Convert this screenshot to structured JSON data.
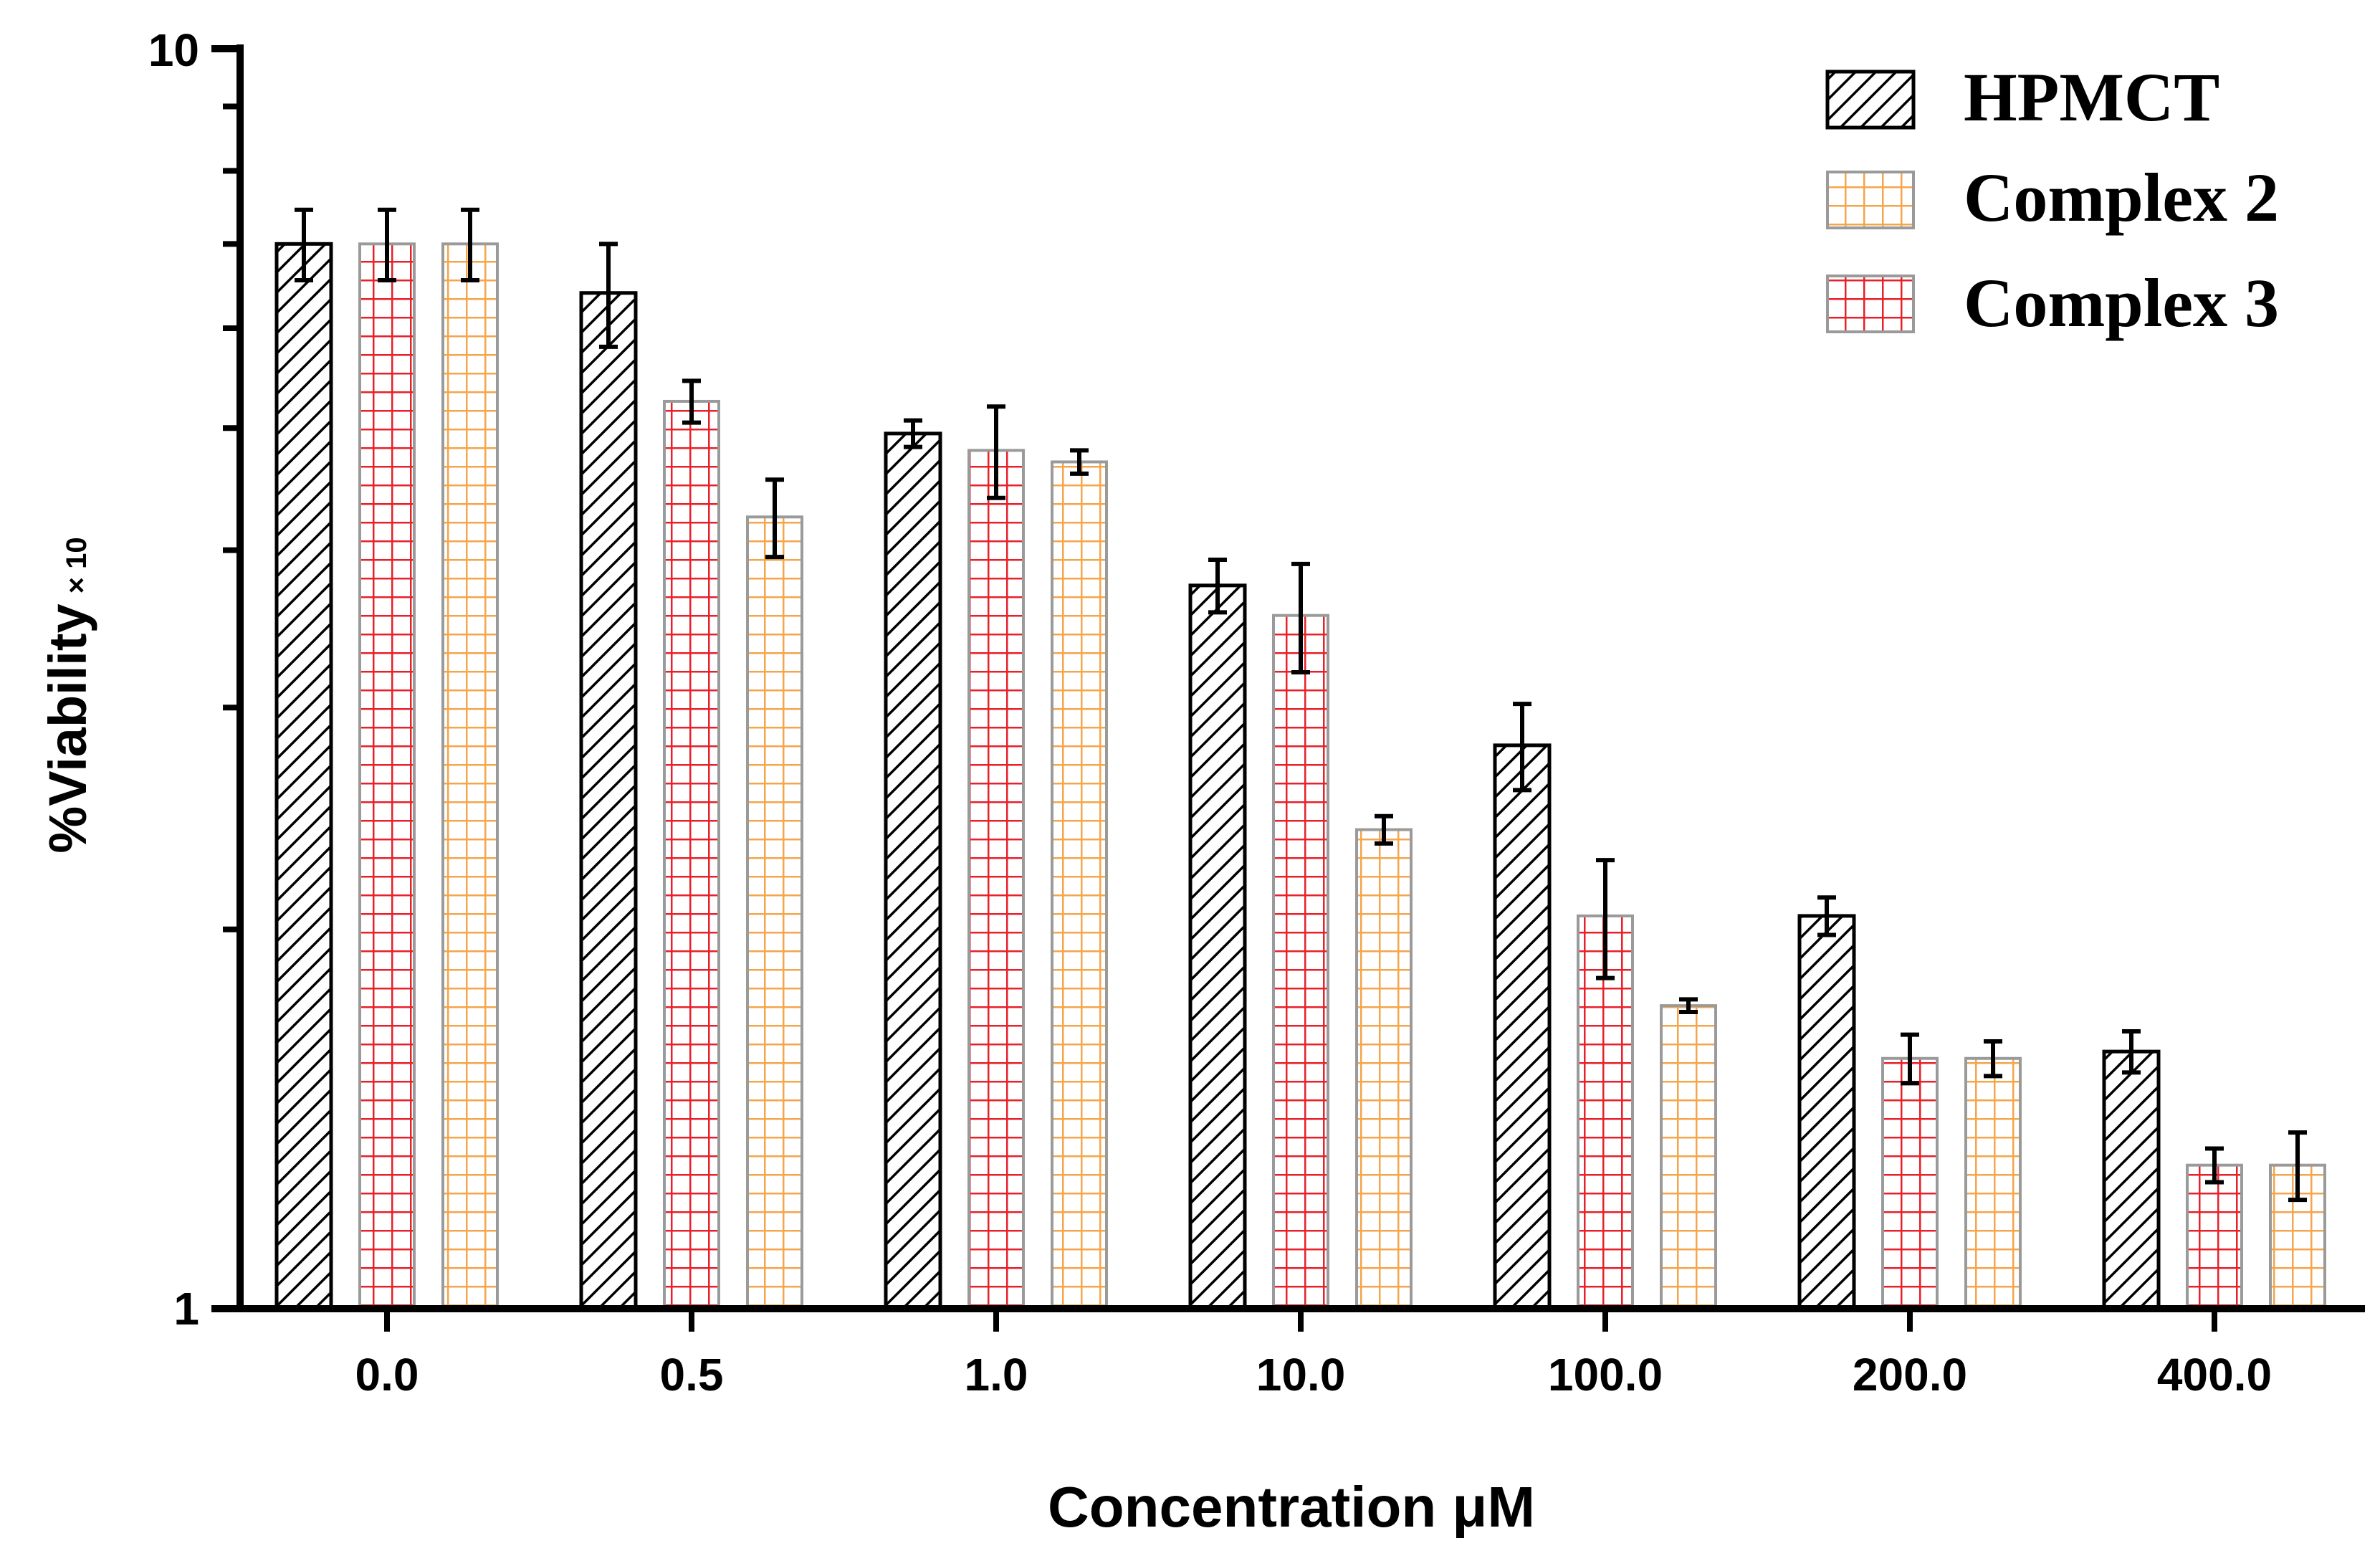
{
  "chart_data": {
    "type": "bar",
    "scale": "log",
    "xlabel": "Concentration μM",
    "ylabel": "%Viability",
    "ylabel_suffix": "× 10",
    "ylim": [
      1,
      10
    ],
    "y_ticks": [
      "1",
      "10"
    ],
    "categories": [
      "0.0",
      "0.5",
      "1.0",
      "10.0",
      "100.0",
      "200.0",
      "400.0"
    ],
    "legend_position": "top-right",
    "legend": [
      {
        "label": "HPMCT",
        "pattern": "diagonal",
        "color": "#000000"
      },
      {
        "label": "Complex 2",
        "pattern": "grid",
        "color": "#f5a54a"
      },
      {
        "label": "Complex 3",
        "pattern": "grid",
        "color": "#e8202a"
      }
    ],
    "series": [
      {
        "pattern": "diagonal",
        "color": "#000000",
        "values": [
          7.0,
          6.4,
          4.95,
          3.75,
          2.8,
          2.05,
          1.6
        ],
        "errors": [
          0.45,
          0.6,
          0.12,
          0.18,
          0.22,
          0.07,
          0.06
        ]
      },
      {
        "pattern": "grid",
        "color": "#e8202a",
        "values": [
          7.0,
          5.25,
          4.8,
          3.55,
          2.05,
          1.58,
          1.3
        ],
        "errors": [
          0.45,
          0.2,
          0.4,
          0.35,
          0.22,
          0.07,
          0.04
        ]
      },
      {
        "pattern": "grid",
        "color": "#f5a54a",
        "values": [
          7.0,
          4.25,
          4.7,
          2.4,
          1.74,
          1.58,
          1.3
        ],
        "errors": [
          0.45,
          0.3,
          0.1,
          0.06,
          0.02,
          0.05,
          0.08
        ]
      }
    ]
  }
}
